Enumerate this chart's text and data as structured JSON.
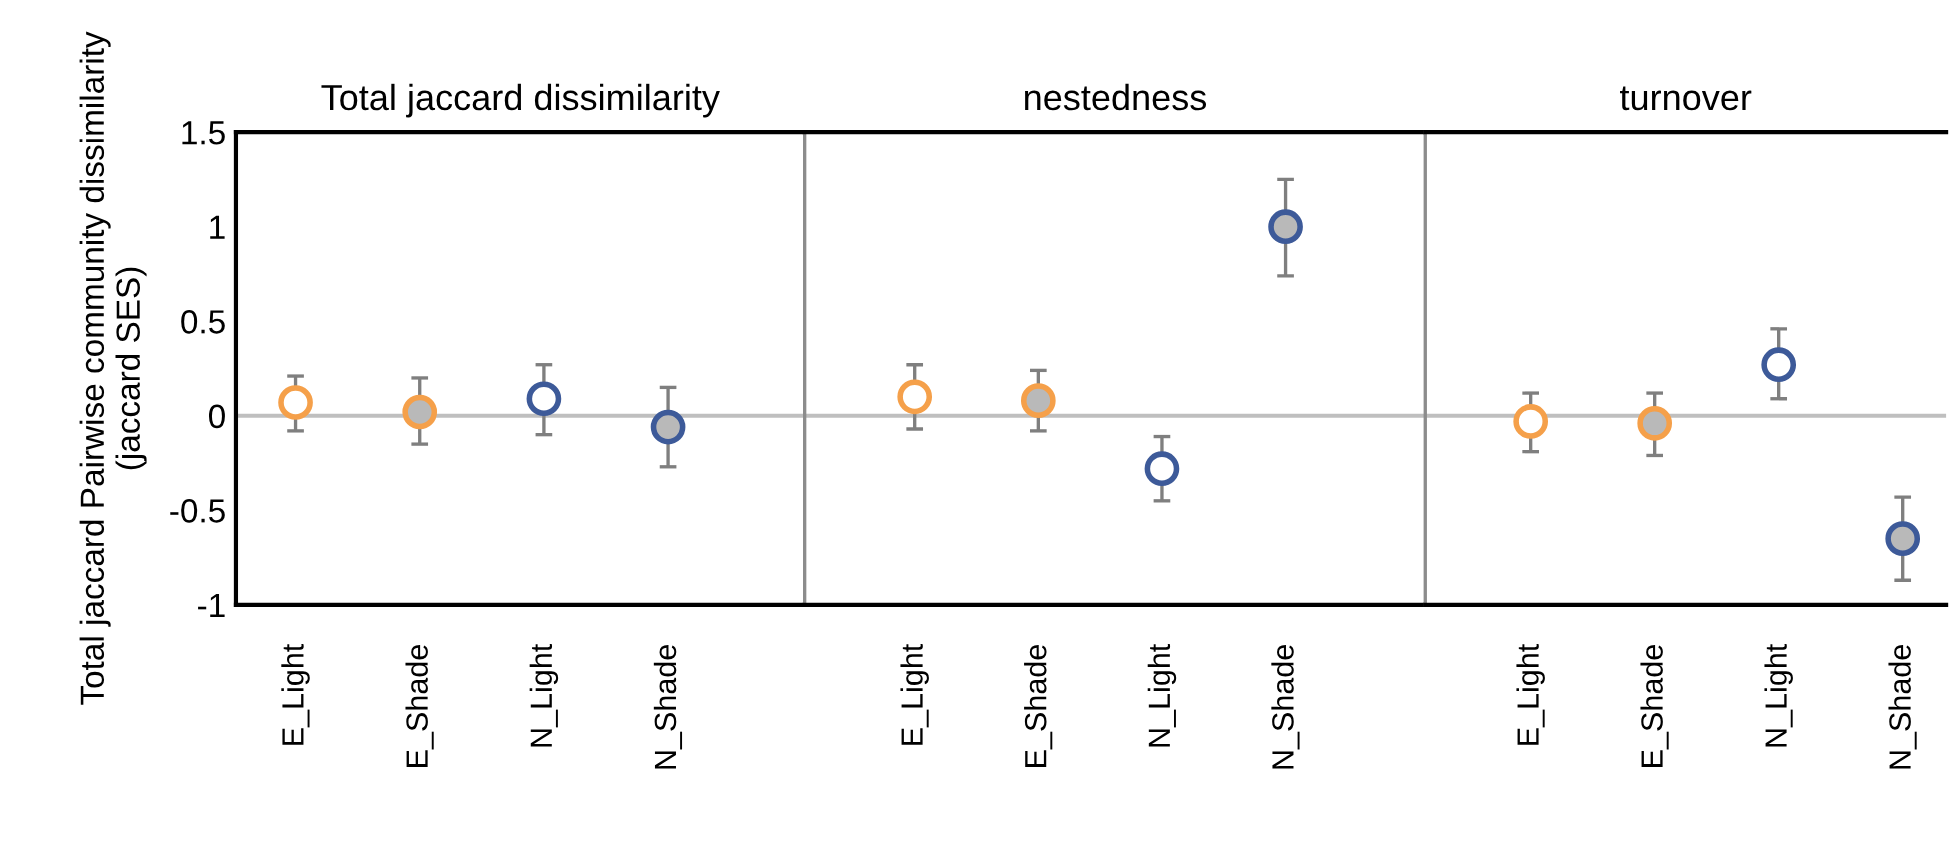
{
  "chart_data": [
    {
      "type": "scatter",
      "title": "Total jaccard dissimilarity",
      "ylabel": "Total jaccard Pairwise community dissimilarity\n(jaccard SES)",
      "categories": [
        "E_Light",
        "E_Shade",
        "N_Light",
        "N_Shade"
      ],
      "ylim": [
        -1,
        1.5
      ],
      "yticks": [
        -1,
        -0.5,
        0,
        0.5,
        1,
        1.5
      ],
      "marker": "circle",
      "grid": false,
      "legend": false,
      "ref_lines": [
        {
          "axis": "y",
          "value": 0,
          "color": "#bfbfbf"
        }
      ],
      "series": [
        {
          "colors": [
            "#f5a04a",
            null,
            "#3d5a99",
            null
          ],
          "values": [
            0.07,
            null,
            0.09,
            null
          ],
          "errors": [
            [
              -0.08,
              0.21
            ],
            null,
            [
              -0.1,
              0.27
            ],
            null
          ]
        },
        {
          "color": "#b9b9b9",
          "colors": [
            null,
            "#f5a04a",
            null,
            "#3d5a99"
          ],
          "values": [
            null,
            0.02,
            null,
            -0.06
          ],
          "errors": [
            null,
            [
              -0.15,
              0.2
            ],
            null,
            [
              -0.27,
              0.15
            ]
          ]
        }
      ]
    },
    {
      "type": "scatter",
      "title": "nestedness",
      "categories": [
        "E_Light",
        "E_Shade",
        "N_Light",
        "N_Shade"
      ],
      "ylim": [
        -1,
        1.5
      ],
      "yticks": [
        -1,
        -0.5,
        0,
        0.5,
        1,
        1.5
      ],
      "tick_labels": "x",
      "marker": "circle",
      "grid": false,
      "legend": false,
      "ref_lines": [
        {
          "axis": "y",
          "value": 0,
          "color": "#bfbfbf"
        }
      ],
      "series": [
        {
          "colors": [
            "#f5a04a",
            null,
            "#3d5a99",
            null
          ],
          "values": [
            0.1,
            null,
            -0.28,
            null
          ],
          "errors": [
            [
              -0.07,
              0.27
            ],
            null,
            [
              -0.45,
              -0.11
            ],
            null
          ]
        },
        {
          "color": "#b9b9b9",
          "colors": [
            null,
            "#f5a04a",
            null,
            "#3d5a99"
          ],
          "values": [
            null,
            0.08,
            null,
            1.0
          ],
          "errors": [
            null,
            [
              -0.08,
              0.24
            ],
            null,
            [
              0.74,
              1.25
            ]
          ]
        }
      ]
    },
    {
      "type": "scatter",
      "title": "turnover",
      "categories": [
        "E_Light",
        "E_Shade",
        "N_Light",
        "N_Shade"
      ],
      "ylim": [
        -1,
        1.5
      ],
      "yticks": [
        -1,
        -0.5,
        0,
        0.5,
        1,
        1.5
      ],
      "tick_labels": "x",
      "marker": "circle",
      "grid": false,
      "legend": false,
      "ref_lines": [
        {
          "axis": "y",
          "value": 0,
          "color": "#bfbfbf"
        }
      ],
      "series": [
        {
          "colors": [
            "#f5a04a",
            null,
            "#3d5a99",
            null
          ],
          "values": [
            -0.03,
            null,
            0.27,
            null
          ],
          "errors": [
            [
              -0.19,
              0.12
            ],
            null,
            [
              0.09,
              0.46
            ],
            null
          ]
        },
        {
          "color": "#b9b9b9",
          "colors": [
            null,
            "#f5a04a",
            null,
            "#3d5a99"
          ],
          "values": [
            null,
            -0.04,
            null,
            -0.65
          ],
          "errors": [
            null,
            [
              -0.21,
              0.12
            ],
            null,
            [
              -0.87,
              -0.43
            ]
          ]
        }
      ]
    }
  ]
}
